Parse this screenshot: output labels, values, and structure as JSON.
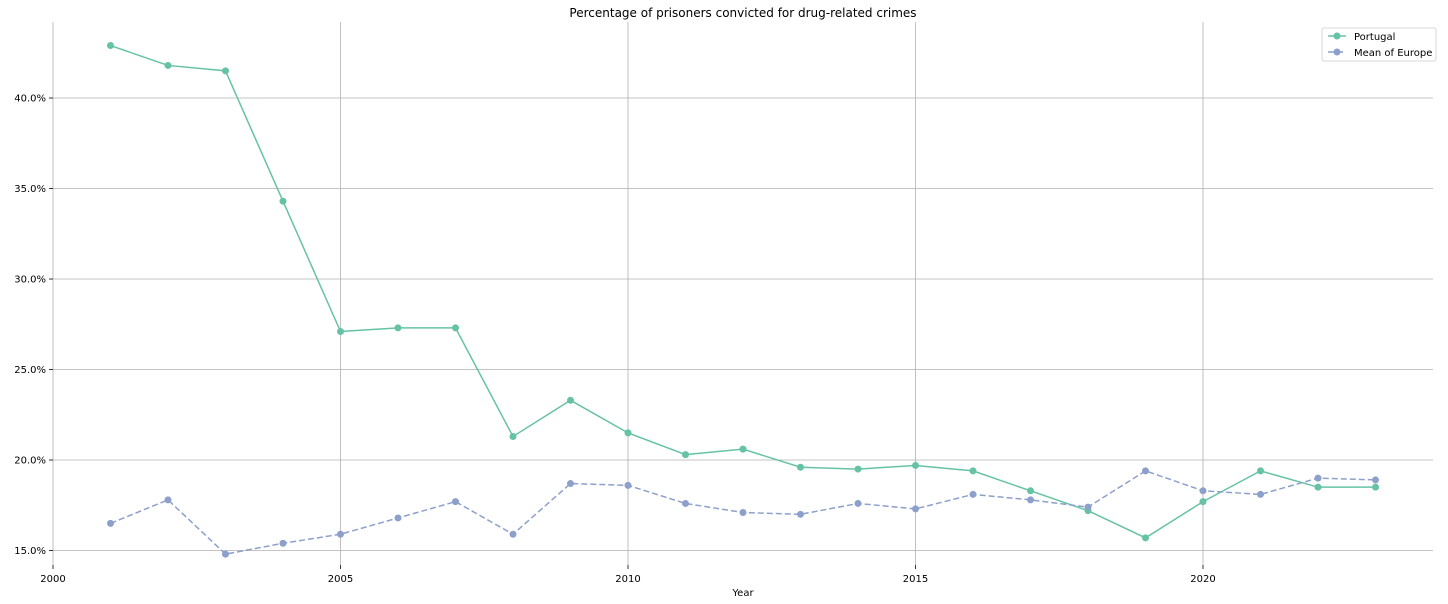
{
  "chart_data": {
    "type": "line",
    "title": "Percentage of prisoners convicted for drug-related crimes",
    "xlabel": "Year",
    "ylabel": "",
    "xlim": [
      2000,
      2024
    ],
    "ylim": [
      14.2,
      44.2
    ],
    "x_ticks": [
      2000,
      2005,
      2010,
      2015,
      2020
    ],
    "y_ticks": [
      15,
      20,
      25,
      30,
      35,
      40
    ],
    "y_tick_labels": [
      "15.0%",
      "20.0%",
      "25.0%",
      "30.0%",
      "35.0%",
      "40.0%"
    ],
    "grid": true,
    "legend_position": "top-right",
    "x": [
      2001,
      2002,
      2003,
      2004,
      2005,
      2006,
      2007,
      2008,
      2009,
      2010,
      2011,
      2012,
      2013,
      2014,
      2015,
      2016,
      2017,
      2018,
      2019,
      2020,
      2021,
      2022,
      2023
    ],
    "series": [
      {
        "name": "Portugal",
        "color": "#66c2a5",
        "dash": "solid",
        "values": [
          42.9,
          41.8,
          41.5,
          34.3,
          27.1,
          27.3,
          27.3,
          21.3,
          23.3,
          21.5,
          20.3,
          20.6,
          19.6,
          19.5,
          19.7,
          19.4,
          18.3,
          17.2,
          15.7,
          17.7,
          19.4,
          18.5,
          18.5
        ]
      },
      {
        "name": "Mean of Europe",
        "color": "#8da0cb",
        "dash": "dashed",
        "values": [
          16.5,
          17.8,
          14.8,
          15.4,
          15.9,
          16.8,
          17.7,
          15.9,
          18.7,
          18.6,
          17.6,
          17.1,
          17.0,
          17.6,
          17.3,
          18.1,
          17.8,
          17.4,
          19.4,
          18.3,
          18.1,
          19.0,
          18.9
        ]
      }
    ]
  }
}
